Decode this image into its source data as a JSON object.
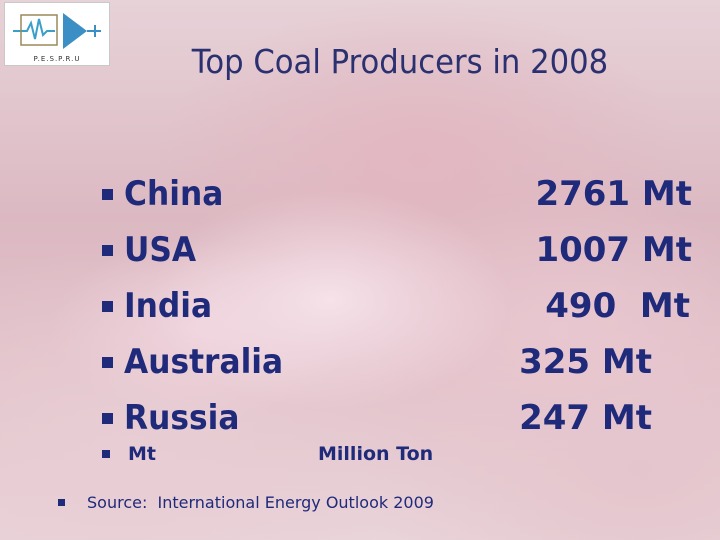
{
  "logo": {
    "text": "P.E.S.P.R.U"
  },
  "title": "Top Coal Producers in 2008",
  "bullets": [
    {
      "country": "China",
      "value": "2761 Mt"
    },
    {
      "country": "USA",
      "value": "1007 Mt"
    },
    {
      "country": "India",
      "value": "490  Mt"
    },
    {
      "country": "Australia",
      "value": "325 Mt"
    },
    {
      "country": "Russia",
      "value": "247 Mt"
    }
  ],
  "legend": {
    "term": "Mt",
    "definition": "Million Ton"
  },
  "source": "Source:  International Energy Outlook 2009",
  "colors": {
    "text": "#1f2a7a",
    "title": "#2a3070"
  }
}
